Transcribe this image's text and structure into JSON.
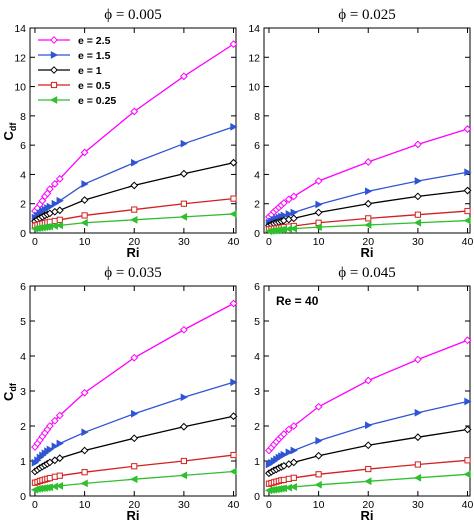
{
  "chart_data": [
    {
      "type": "line",
      "title": "ϕ = 0.005",
      "xlabel": "Ri",
      "ylabel": "C",
      "ylabel_sub": "df",
      "xlim": [
        -1,
        40.5
      ],
      "ylim": [
        0,
        14
      ],
      "xticks": [
        0,
        10,
        20,
        30,
        40
      ],
      "yticks": [
        0,
        2,
        4,
        6,
        8,
        10,
        12,
        14
      ],
      "legend": "top-left",
      "grid": false,
      "series": [
        {
          "name": "e = 2.5",
          "color": "#ff00ff",
          "marker": "diamond",
          "x": [
            0,
            0.5,
            1,
            1.5,
            2,
            2.5,
            3,
            4,
            5,
            10,
            20,
            30,
            40
          ],
          "y": [
            1.5,
            1.7,
            1.95,
            2.2,
            2.5,
            2.7,
            3.0,
            3.35,
            3.7,
            5.5,
            8.3,
            10.7,
            12.9
          ]
        },
        {
          "name": "e = 1.5",
          "color": "#2f55d4",
          "marker": "triangle",
          "x": [
            0,
            0.5,
            1,
            1.5,
            2,
            2.5,
            3,
            4,
            5,
            10,
            20,
            30,
            40
          ],
          "y": [
            1.05,
            1.2,
            1.35,
            1.5,
            1.6,
            1.7,
            1.8,
            2.0,
            2.2,
            3.35,
            4.8,
            6.1,
            7.25
          ]
        },
        {
          "name": "e = 1",
          "color": "#000000",
          "marker": "diamond",
          "x": [
            0,
            0.5,
            1,
            1.5,
            2,
            2.5,
            3,
            4,
            5,
            10,
            20,
            30,
            40
          ],
          "y": [
            0.8,
            0.92,
            1.02,
            1.1,
            1.2,
            1.27,
            1.34,
            1.45,
            1.55,
            2.25,
            3.25,
            4.05,
            4.8
          ]
        },
        {
          "name": "e = 0.5",
          "color": "#d41f1f",
          "marker": "square",
          "x": [
            0,
            0.5,
            1,
            1.5,
            2,
            2.5,
            3,
            4,
            5,
            10,
            20,
            30,
            40
          ],
          "y": [
            0.5,
            0.55,
            0.6,
            0.64,
            0.68,
            0.72,
            0.76,
            0.82,
            0.9,
            1.2,
            1.6,
            2.0,
            2.35
          ]
        },
        {
          "name": "e = 0.25",
          "color": "#2fbf2f",
          "marker": "triangle-left",
          "x": [
            0,
            0.5,
            1,
            1.5,
            2,
            2.5,
            3,
            4,
            5,
            10,
            20,
            30,
            40
          ],
          "y": [
            0.3,
            0.32,
            0.35,
            0.37,
            0.4,
            0.42,
            0.44,
            0.48,
            0.52,
            0.7,
            0.9,
            1.1,
            1.3
          ]
        }
      ]
    },
    {
      "type": "line",
      "title": "ϕ = 0.025",
      "xlabel": "Ri",
      "ylabel": "",
      "ylabel_sub": "",
      "xlim": [
        -1,
        40.5
      ],
      "ylim": [
        0,
        14
      ],
      "xticks": [
        0,
        10,
        20,
        30,
        40
      ],
      "yticks": [
        0,
        2,
        4,
        6,
        8,
        10,
        12,
        14
      ],
      "grid": false,
      "series": [
        {
          "name": "e = 2.5",
          "color": "#ff00ff",
          "marker": "diamond",
          "x": [
            0,
            0.5,
            1,
            1.5,
            2,
            2.5,
            3,
            4,
            5,
            10,
            20,
            30,
            40
          ],
          "y": [
            1.1,
            1.25,
            1.45,
            1.6,
            1.75,
            1.9,
            2.05,
            2.3,
            2.5,
            3.55,
            4.85,
            6.05,
            7.1
          ]
        },
        {
          "name": "e = 1.5",
          "color": "#2f55d4",
          "marker": "triangle",
          "x": [
            0,
            0.5,
            1,
            1.5,
            2,
            2.5,
            3,
            4,
            5,
            10,
            20,
            30,
            40
          ],
          "y": [
            0.7,
            0.8,
            0.9,
            0.98,
            1.05,
            1.12,
            1.2,
            1.3,
            1.4,
            1.95,
            2.85,
            3.55,
            4.15
          ]
        },
        {
          "name": "e = 1",
          "color": "#000000",
          "marker": "diamond",
          "x": [
            0,
            0.5,
            1,
            1.5,
            2,
            2.5,
            3,
            4,
            5,
            10,
            20,
            30,
            40
          ],
          "y": [
            0.5,
            0.58,
            0.65,
            0.7,
            0.75,
            0.8,
            0.85,
            0.92,
            1.0,
            1.4,
            2.0,
            2.5,
            2.9
          ]
        },
        {
          "name": "e = 0.5",
          "color": "#d41f1f",
          "marker": "square",
          "x": [
            0,
            0.5,
            1,
            1.5,
            2,
            2.5,
            3,
            4,
            5,
            10,
            20,
            30,
            40
          ],
          "y": [
            0.25,
            0.28,
            0.3,
            0.32,
            0.35,
            0.37,
            0.4,
            0.44,
            0.48,
            0.7,
            1.0,
            1.25,
            1.5
          ]
        },
        {
          "name": "e = 0.25",
          "color": "#2fbf2f",
          "marker": "triangle-left",
          "x": [
            0,
            0.5,
            1,
            1.5,
            2,
            2.5,
            3,
            4,
            5,
            10,
            20,
            30,
            40
          ],
          "y": [
            0.12,
            0.14,
            0.16,
            0.18,
            0.2,
            0.22,
            0.24,
            0.27,
            0.3,
            0.4,
            0.55,
            0.7,
            0.85
          ]
        }
      ]
    },
    {
      "type": "line",
      "title": "ϕ = 0.035",
      "xlabel": "Ri",
      "ylabel": "C",
      "ylabel_sub": "df",
      "xlim": [
        -1,
        40.5
      ],
      "ylim": [
        0,
        6
      ],
      "xticks": [
        0,
        10,
        20,
        30,
        40
      ],
      "yticks": [
        0,
        1,
        2,
        3,
        4,
        5,
        6
      ],
      "grid": false,
      "series": [
        {
          "name": "e = 2.5",
          "color": "#ff00ff",
          "marker": "diamond",
          "x": [
            0,
            0.5,
            1,
            1.5,
            2,
            2.5,
            3,
            4,
            5,
            10,
            20,
            30,
            40
          ],
          "y": [
            1.4,
            1.5,
            1.6,
            1.7,
            1.8,
            1.9,
            2.0,
            2.15,
            2.3,
            2.95,
            3.95,
            4.75,
            5.5
          ]
        },
        {
          "name": "e = 1.5",
          "color": "#2f55d4",
          "marker": "triangle",
          "x": [
            0,
            0.5,
            1,
            1.5,
            2,
            2.5,
            3,
            4,
            5,
            10,
            20,
            30,
            40
          ],
          "y": [
            0.95,
            1.02,
            1.1,
            1.16,
            1.22,
            1.28,
            1.33,
            1.42,
            1.5,
            1.82,
            2.35,
            2.82,
            3.25
          ]
        },
        {
          "name": "e = 1",
          "color": "#000000",
          "marker": "diamond",
          "x": [
            0,
            0.5,
            1,
            1.5,
            2,
            2.5,
            3,
            4,
            5,
            10,
            20,
            30,
            40
          ],
          "y": [
            0.7,
            0.75,
            0.8,
            0.84,
            0.88,
            0.92,
            0.96,
            1.02,
            1.08,
            1.3,
            1.65,
            1.98,
            2.28
          ]
        },
        {
          "name": "e = 0.5",
          "color": "#d41f1f",
          "marker": "square",
          "x": [
            0,
            0.5,
            1,
            1.5,
            2,
            2.5,
            3,
            4,
            5,
            10,
            20,
            30,
            40
          ],
          "y": [
            0.38,
            0.4,
            0.43,
            0.45,
            0.47,
            0.49,
            0.51,
            0.55,
            0.58,
            0.68,
            0.85,
            1.0,
            1.17
          ]
        },
        {
          "name": "e = 0.25",
          "color": "#2fbf2f",
          "marker": "triangle-left",
          "x": [
            0,
            0.5,
            1,
            1.5,
            2,
            2.5,
            3,
            4,
            5,
            10,
            20,
            30,
            40
          ],
          "y": [
            0.18,
            0.2,
            0.21,
            0.22,
            0.23,
            0.24,
            0.25,
            0.27,
            0.29,
            0.36,
            0.48,
            0.59,
            0.7
          ]
        }
      ]
    },
    {
      "type": "line",
      "title": "ϕ = 0.045",
      "xlabel": "Ri",
      "ylabel": "",
      "ylabel_sub": "",
      "annotation": "Re = 40",
      "xlim": [
        -1,
        40.5
      ],
      "ylim": [
        0,
        6
      ],
      "xticks": [
        0,
        10,
        20,
        30,
        40
      ],
      "yticks": [
        0,
        1,
        2,
        3,
        4,
        5,
        6
      ],
      "grid": false,
      "series": [
        {
          "name": "e = 2.5",
          "color": "#ff00ff",
          "marker": "diamond",
          "x": [
            0,
            0.5,
            1,
            1.5,
            2,
            2.5,
            3,
            4,
            5,
            10,
            20,
            30,
            40
          ],
          "y": [
            1.3,
            1.38,
            1.47,
            1.55,
            1.63,
            1.7,
            1.77,
            1.9,
            2.0,
            2.55,
            3.3,
            3.9,
            4.45
          ]
        },
        {
          "name": "e = 1.5",
          "color": "#2f55d4",
          "marker": "triangle",
          "x": [
            0,
            0.5,
            1,
            1.5,
            2,
            2.5,
            3,
            4,
            5,
            10,
            20,
            30,
            40
          ],
          "y": [
            0.9,
            0.95,
            1.0,
            1.05,
            1.1,
            1.14,
            1.18,
            1.25,
            1.3,
            1.58,
            2.02,
            2.38,
            2.7
          ]
        },
        {
          "name": "e = 1",
          "color": "#000000",
          "marker": "diamond",
          "x": [
            0,
            0.5,
            1,
            1.5,
            2,
            2.5,
            3,
            4,
            5,
            10,
            20,
            30,
            40
          ],
          "y": [
            0.65,
            0.69,
            0.73,
            0.76,
            0.8,
            0.83,
            0.86,
            0.91,
            0.96,
            1.15,
            1.45,
            1.68,
            1.9
          ]
        },
        {
          "name": "e = 0.5",
          "color": "#d41f1f",
          "marker": "square",
          "x": [
            0,
            0.5,
            1,
            1.5,
            2,
            2.5,
            3,
            4,
            5,
            10,
            20,
            30,
            40
          ],
          "y": [
            0.35,
            0.37,
            0.39,
            0.41,
            0.43,
            0.45,
            0.46,
            0.49,
            0.52,
            0.62,
            0.77,
            0.9,
            1.02
          ]
        },
        {
          "name": "e = 0.25",
          "color": "#2fbf2f",
          "marker": "triangle-left",
          "x": [
            0,
            0.5,
            1,
            1.5,
            2,
            2.5,
            3,
            4,
            5,
            10,
            20,
            30,
            40
          ],
          "y": [
            0.16,
            0.17,
            0.18,
            0.19,
            0.2,
            0.21,
            0.22,
            0.24,
            0.26,
            0.32,
            0.42,
            0.52,
            0.62
          ]
        }
      ]
    }
  ]
}
